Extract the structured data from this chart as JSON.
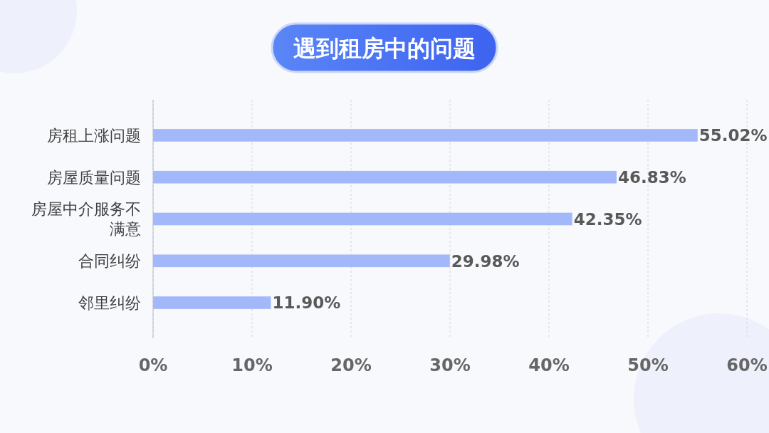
{
  "chart_data": {
    "type": "bar",
    "orientation": "horizontal",
    "title": "遇到租房中的问题",
    "categories": [
      "房租上涨问题",
      "房屋质量问题",
      "房屋中介服务不满意",
      "合同纠纷",
      "邻里纠纷"
    ],
    "values": [
      55.02,
      46.83,
      42.35,
      29.98,
      11.9
    ],
    "value_labels": [
      "55.02%",
      "46.83%",
      "42.35%",
      "29.98%",
      "11.90%"
    ],
    "color": "#a3b8fb",
    "xlim": [
      0,
      60
    ],
    "xticks": [
      {
        "value": 0,
        "label": "0%"
      },
      {
        "value": 10,
        "label": "10%"
      },
      {
        "value": 20,
        "label": "20%"
      },
      {
        "value": 30,
        "label": "30%"
      },
      {
        "value": 40,
        "label": "40%"
      },
      {
        "value": 50,
        "label": "50%"
      },
      {
        "value": 60,
        "label": "60%"
      }
    ],
    "grid": "x"
  }
}
